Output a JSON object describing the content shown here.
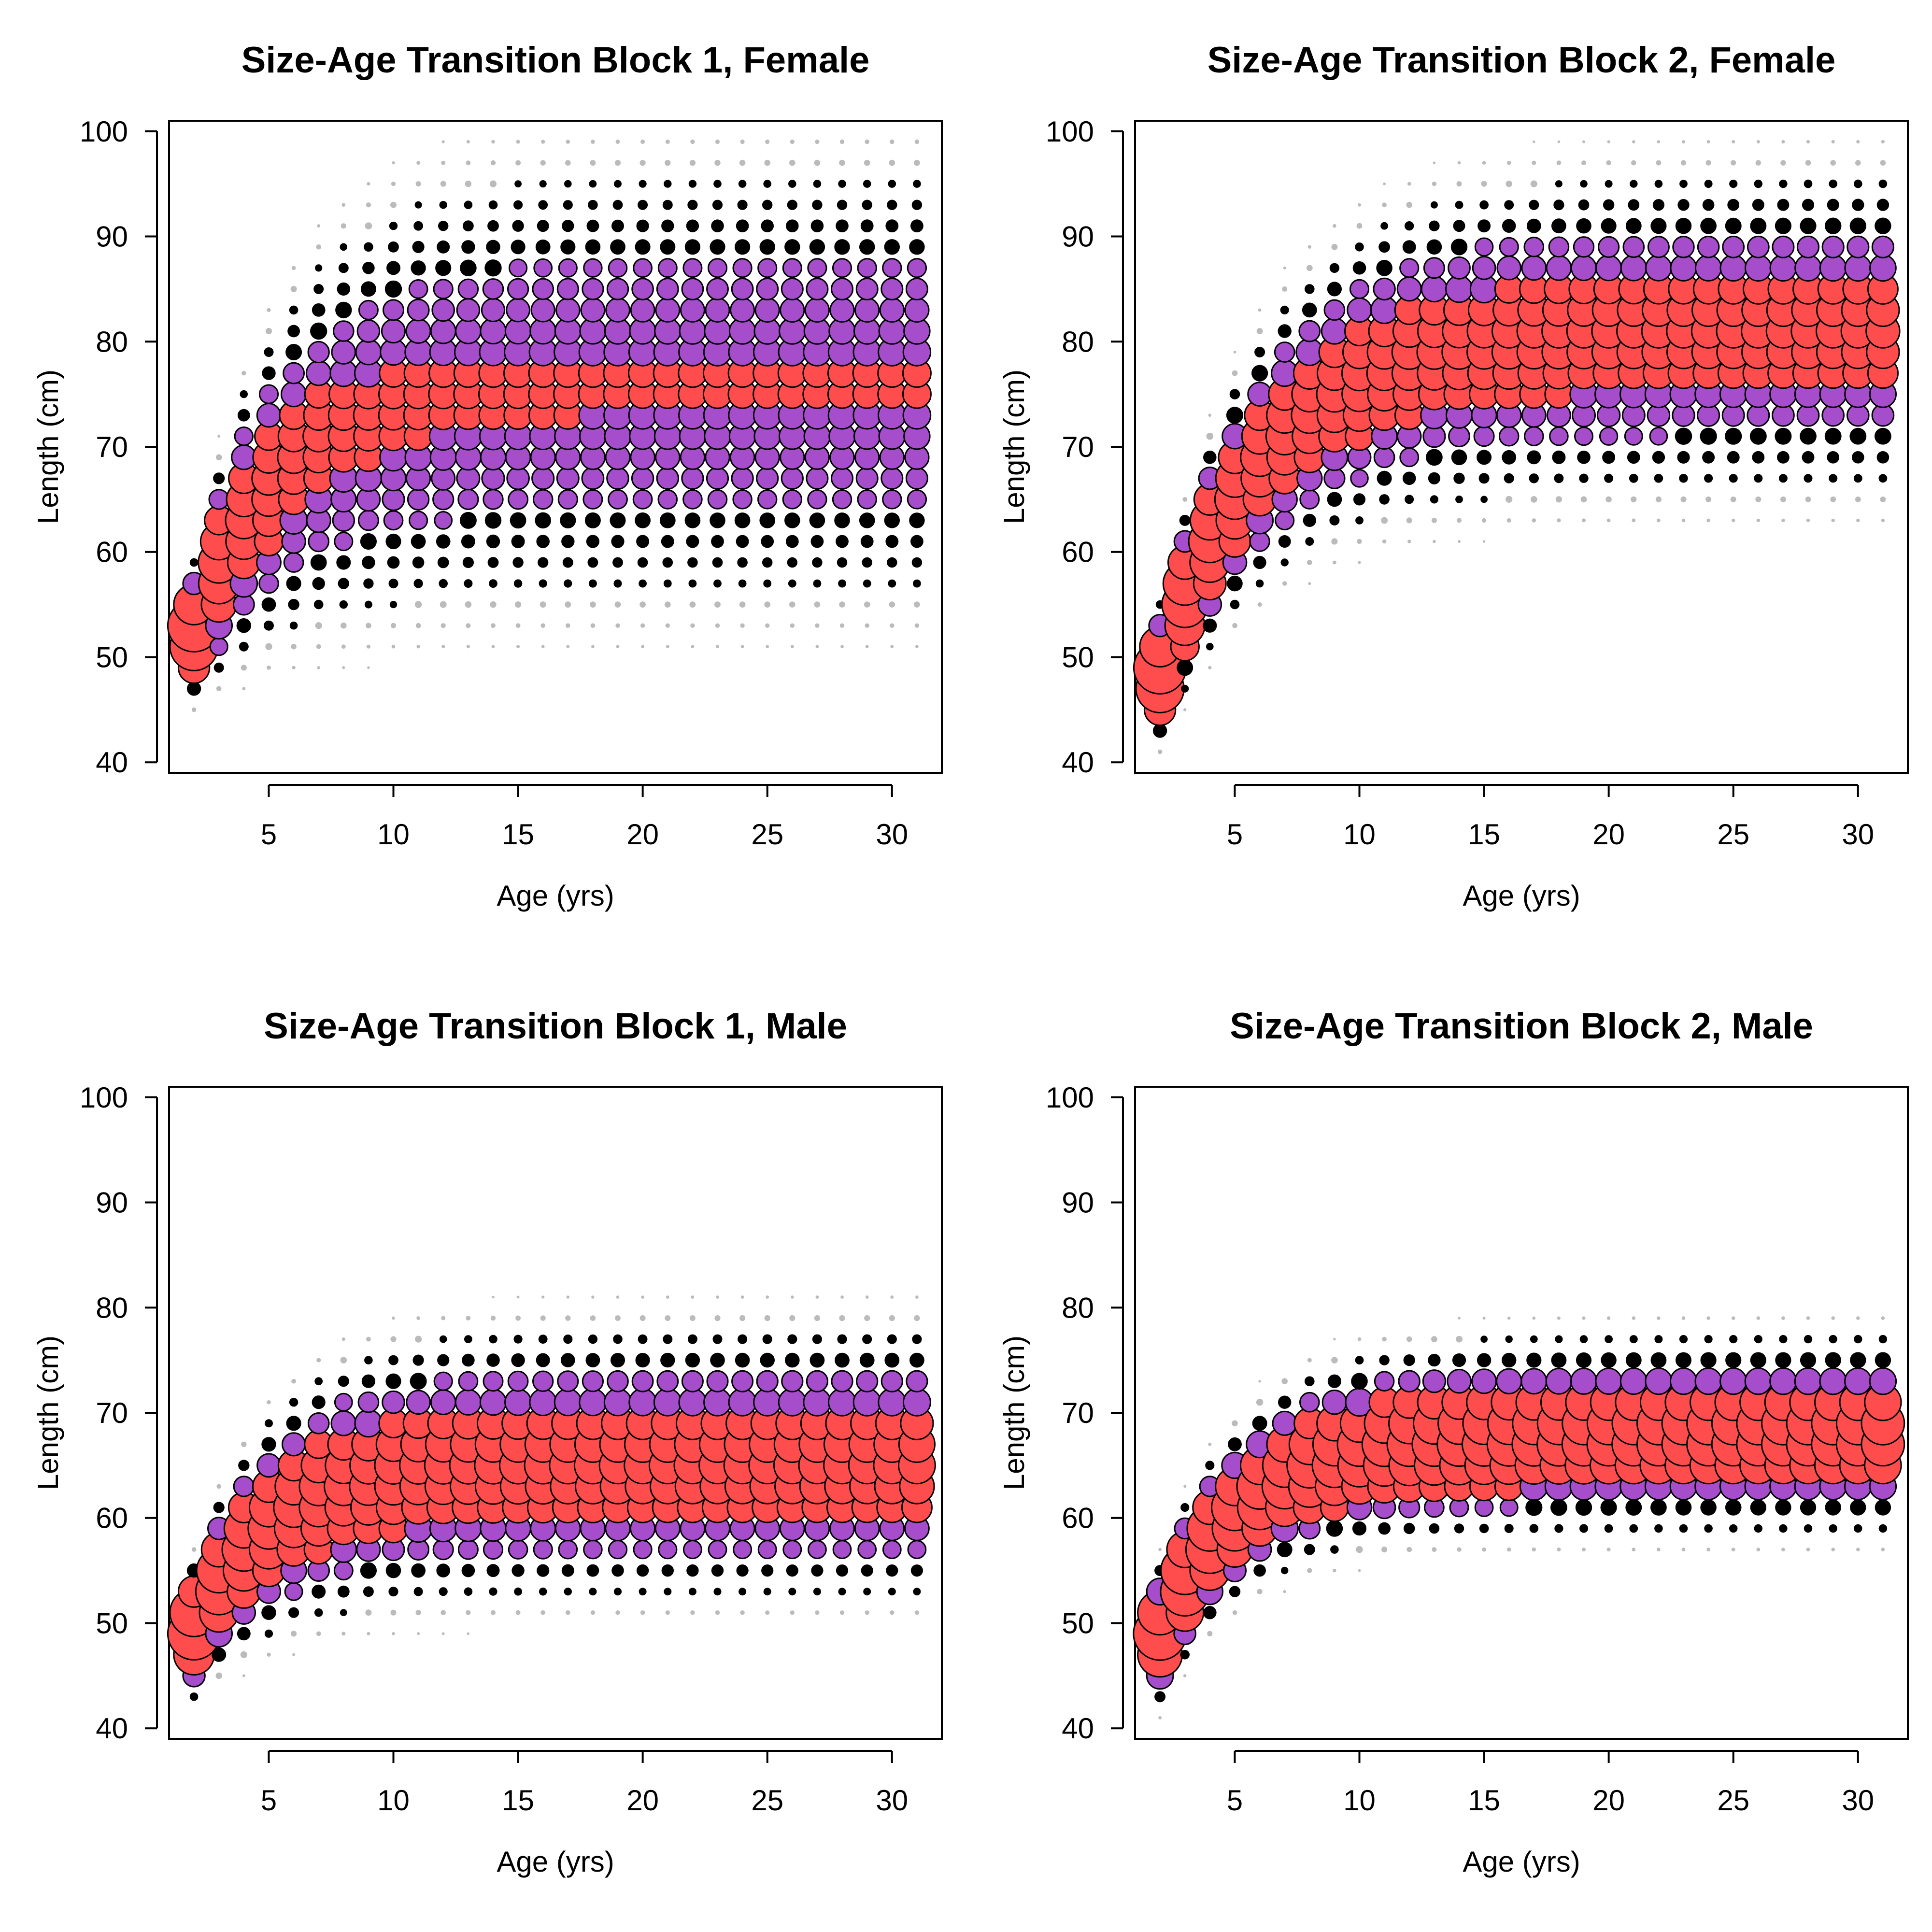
{
  "colors": {
    "high": "#ff4d4d",
    "mid": "#a64dcc",
    "low": "#000000",
    "faint": "#bbbbbb"
  },
  "chart_data": [
    {
      "type": "scatter",
      "subtype": "bubble",
      "title": "Size-Age Transition Block 1, Female",
      "xlabel": "Age (yrs)",
      "ylabel": "Length (cm)",
      "xlim": [
        1,
        32
      ],
      "ylim": [
        39,
        101
      ],
      "x_ticks": [
        5,
        10,
        15,
        20,
        25,
        30
      ],
      "y_ticks": [
        40,
        50,
        60,
        70,
        80,
        90,
        100
      ],
      "ages": [
        2,
        31
      ],
      "length_bins": [
        41,
        99,
        2
      ],
      "growth": {
        "start_mean": 52.5,
        "asymptote": 76.0,
        "k": 0.28,
        "sd_start": 2.4,
        "sd_end": 8.5
      },
      "grid": false,
      "legend": "none"
    },
    {
      "type": "scatter",
      "subtype": "bubble",
      "title": "Size-Age Transition Block 2, Female",
      "xlabel": "Age (yrs)",
      "ylabel": "Length (cm)",
      "xlim": [
        1,
        32
      ],
      "ylim": [
        39,
        101
      ],
      "x_ticks": [
        5,
        10,
        15,
        20,
        25,
        30
      ],
      "y_ticks": [
        40,
        50,
        60,
        70,
        80,
        90,
        100
      ],
      "ages": [
        2,
        31
      ],
      "length_bins": [
        41,
        99,
        2
      ],
      "growth": {
        "start_mean": 48.5,
        "asymptote": 81.0,
        "k": 0.24,
        "sd_start": 2.4,
        "sd_end": 6.0
      },
      "grid": false,
      "legend": "none"
    },
    {
      "type": "scatter",
      "subtype": "bubble",
      "title": "Size-Age Transition Block 1, Male",
      "xlabel": "Age (yrs)",
      "ylabel": "Length (cm)",
      "xlim": [
        1,
        32
      ],
      "ylim": [
        39,
        101
      ],
      "x_ticks": [
        5,
        10,
        15,
        20,
        25,
        30
      ],
      "y_ticks": [
        40,
        50,
        60,
        70,
        80,
        90,
        100
      ],
      "ages": [
        2,
        31
      ],
      "length_bins": [
        41,
        97,
        2
      ],
      "growth": {
        "start_mean": 49.5,
        "asymptote": 65.5,
        "k": 0.3,
        "sd_start": 2.4,
        "sd_end": 5.0
      },
      "grid": false,
      "legend": "none"
    },
    {
      "type": "scatter",
      "subtype": "bubble",
      "title": "Size-Age Transition Block 2, Male",
      "xlabel": "Age (yrs)",
      "ylabel": "Length (cm)",
      "xlim": [
        1,
        32
      ],
      "ylim": [
        39,
        101
      ],
      "x_ticks": [
        5,
        10,
        15,
        20,
        25,
        30
      ],
      "y_ticks": [
        40,
        50,
        60,
        70,
        80,
        90,
        100
      ],
      "ages": [
        2,
        31
      ],
      "length_bins": [
        41,
        83,
        2
      ],
      "growth": {
        "start_mean": 49.0,
        "asymptote": 68.0,
        "k": 0.3,
        "sd_start": 2.4,
        "sd_end": 3.5
      },
      "grid": false,
      "legend": "none"
    }
  ]
}
